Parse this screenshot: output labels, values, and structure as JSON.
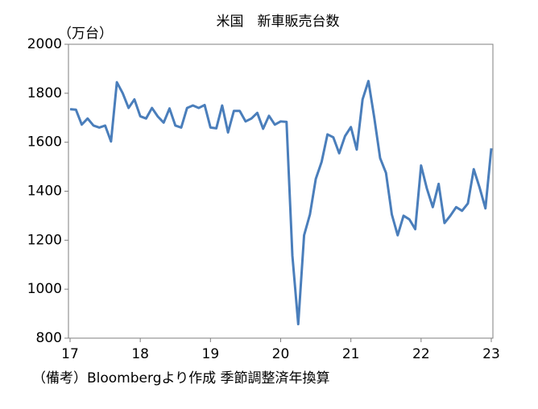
{
  "chart_data": {
    "type": "line",
    "title": "米国　新車販売台数",
    "y_label": "（万台）",
    "note": "（備考）Bloombergより作成 季節調整済年換算",
    "categories": [
      "17",
      null,
      null,
      null,
      null,
      null,
      null,
      null,
      null,
      null,
      null,
      null,
      "18",
      null,
      null,
      null,
      null,
      null,
      null,
      null,
      null,
      null,
      null,
      null,
      "19",
      null,
      null,
      null,
      null,
      null,
      null,
      null,
      null,
      null,
      null,
      null,
      "20",
      null,
      null,
      null,
      null,
      null,
      null,
      null,
      null,
      null,
      null,
      null,
      "21",
      null,
      null,
      null,
      null,
      null,
      null,
      null,
      null,
      null,
      null,
      null,
      "22",
      null,
      null,
      null,
      null,
      null,
      null,
      null,
      null,
      null,
      null,
      null,
      "23"
    ],
    "series": [
      {
        "name": "新車販売台数",
        "color": "#4a7ebb",
        "values": [
          1735,
          1733,
          1672,
          1697,
          1668,
          1660,
          1668,
          1603,
          1845,
          1800,
          1740,
          1775,
          1706,
          1697,
          1740,
          1705,
          1680,
          1738,
          1668,
          1660,
          1740,
          1750,
          1740,
          1752,
          1660,
          1657,
          1750,
          1640,
          1728,
          1728,
          1685,
          1697,
          1720,
          1655,
          1708,
          1672,
          1685,
          1683,
          1137,
          857,
          1220,
          1305,
          1450,
          1520,
          1632,
          1620,
          1555,
          1625,
          1662,
          1570,
          1775,
          1850,
          1700,
          1535,
          1475,
          1305,
          1220,
          1300,
          1285,
          1245,
          1505,
          1410,
          1335,
          1430,
          1270,
          1300,
          1335,
          1320,
          1350,
          1490,
          1415,
          1330,
          1575
        ]
      }
    ],
    "ylim": [
      800,
      2000
    ],
    "yticks": [
      800,
      1000,
      1200,
      1400,
      1600,
      1800,
      2000
    ]
  }
}
